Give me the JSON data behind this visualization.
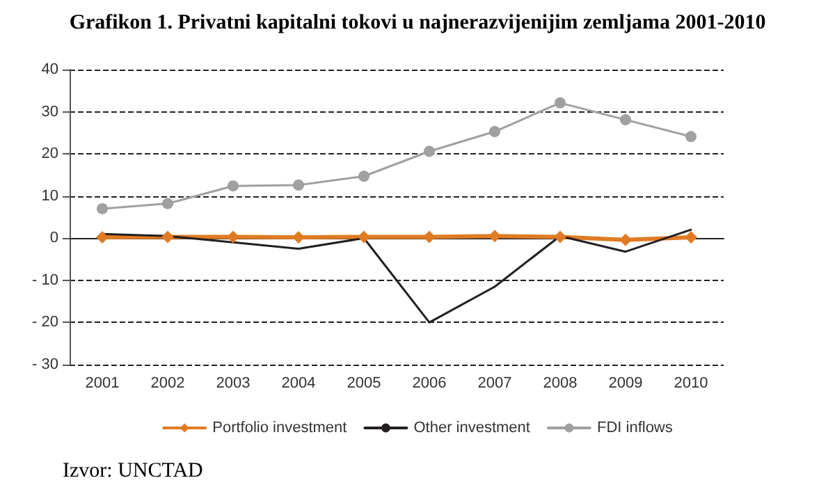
{
  "chart_data": {
    "type": "line",
    "title": "Grafikon 1. Privatni kapitalni tokovi u najnerazvijenijim zemljama 2001-2010",
    "categories": [
      "2001",
      "2002",
      "2003",
      "2004",
      "2005",
      "2006",
      "2007",
      "2008",
      "2009",
      "2010"
    ],
    "series": [
      {
        "name": "Portfolio investment",
        "color": "#e07b24",
        "marker": "diamond",
        "values": [
          0.2,
          0.3,
          0.3,
          0.2,
          0.3,
          0.3,
          0.5,
          0.3,
          -0.4,
          0.2
        ]
      },
      {
        "name": "Other investment",
        "color": "#231f20",
        "marker": "none",
        "values": [
          1,
          0.5,
          -1,
          -2.5,
          0,
          -20,
          -11.5,
          0.5,
          -3.2,
          2
        ]
      },
      {
        "name": "FDI inflows",
        "color": "#a0a0a0",
        "marker": "circle",
        "values": [
          7,
          8.2,
          12.4,
          12.6,
          14.7,
          20.6,
          25.3,
          32.1,
          28.1,
          24.1
        ]
      }
    ],
    "ylim": [
      -30,
      40
    ],
    "yticks": [
      {
        "value": -30,
        "label": "- 30"
      },
      {
        "value": -20,
        "label": "- 20"
      },
      {
        "value": -10,
        "label": "- 10"
      },
      0,
      10,
      20,
      30,
      40
    ],
    "grid": "y",
    "legend": "bottom",
    "annotations": [
      "Izvor: UNCTAD"
    ]
  }
}
